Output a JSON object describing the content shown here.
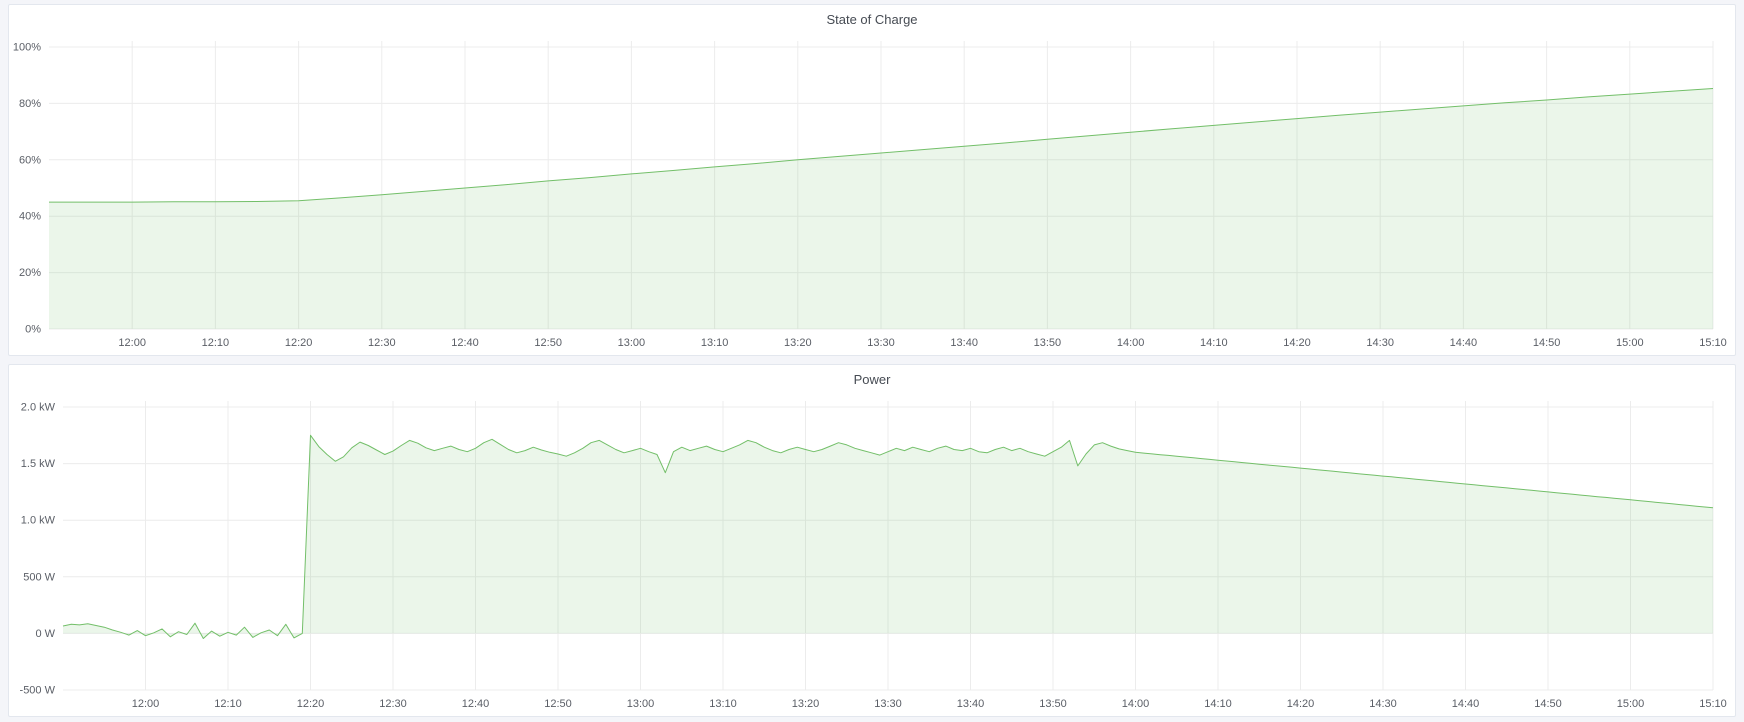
{
  "theme": {
    "page_bg": "#f4f5f9",
    "panel_bg": "#ffffff",
    "panel_border": "#e3e7ee",
    "title_text": "#464b53",
    "tick_text": "#5a5e66",
    "grid": "#ececec",
    "accent_green": "#73bf69"
  },
  "time_window": {
    "from": "11:50",
    "to": "15:10"
  },
  "chart_data": [
    {
      "type": "area",
      "title": "State of Charge",
      "ylabel": "",
      "xlabel": "",
      "x_min": 0,
      "x_max": 200,
      "x_start": 0,
      "x_step": 5,
      "x_ticks": [
        10,
        20,
        30,
        40,
        50,
        60,
        70,
        80,
        90,
        100,
        110,
        120,
        130,
        140,
        150,
        160,
        170,
        180,
        190,
        200
      ],
      "x_tick_labels": [
        "12:00",
        "12:10",
        "12:20",
        "12:30",
        "12:40",
        "12:50",
        "13:00",
        "13:10",
        "13:20",
        "13:30",
        "13:40",
        "13:50",
        "14:00",
        "14:10",
        "14:20",
        "14:30",
        "14:40",
        "14:50",
        "15:00",
        "15:10"
      ],
      "ylim": [
        0,
        100
      ],
      "y_ticks": [
        0,
        20,
        40,
        60,
        80,
        100
      ],
      "y_tick_labels": [
        "0%",
        "20%",
        "40%",
        "60%",
        "80%",
        "100%"
      ],
      "fill_baseline": 0,
      "line_color": "#73bf69",
      "fill_color": "rgba(115,191,105,0.14)",
      "grid_on": true,
      "legend": "none",
      "values": [
        45,
        45,
        45,
        45.1,
        45.1,
        45.2,
        45.5,
        46.5,
        47.6,
        48.8,
        50,
        51.2,
        52.5,
        53.7,
        55,
        56.2,
        57.5,
        58.7,
        60,
        61.2,
        62.4,
        63.6,
        64.8,
        66,
        67.3,
        68.5,
        69.8,
        71,
        72.2,
        73.4,
        74.6,
        75.8,
        76.9,
        78,
        79.1,
        80.2,
        81.2,
        82.3,
        83.3,
        84.3,
        85.3
      ]
    },
    {
      "type": "area",
      "title": "Power",
      "ylabel": "",
      "xlabel": "",
      "x_min": 0,
      "x_max": 200,
      "x_start": 0,
      "x_step": 1,
      "x_ticks": [
        10,
        20,
        30,
        40,
        50,
        60,
        70,
        80,
        90,
        100,
        110,
        120,
        130,
        140,
        150,
        160,
        170,
        180,
        190,
        200
      ],
      "x_tick_labels": [
        "12:00",
        "12:10",
        "12:20",
        "12:30",
        "12:40",
        "12:50",
        "13:00",
        "13:10",
        "13:20",
        "13:30",
        "13:40",
        "13:50",
        "14:00",
        "14:10",
        "14:20",
        "14:30",
        "14:40",
        "14:50",
        "15:00",
        "15:10"
      ],
      "ylim": [
        -500,
        2000
      ],
      "y_ticks": [
        -500,
        0,
        500,
        1000,
        1500,
        2000
      ],
      "y_tick_labels": [
        "-500 W",
        "0 W",
        "500 W",
        "1.0 kW",
        "1.5 kW",
        "2.0 kW"
      ],
      "fill_baseline": 0,
      "line_color": "#73bf69",
      "fill_color": "rgba(115,191,105,0.14)",
      "grid_on": true,
      "legend": "none",
      "values": [
        65,
        80,
        75,
        85,
        70,
        55,
        30,
        10,
        -15,
        25,
        -20,
        5,
        40,
        -30,
        15,
        -10,
        90,
        -45,
        20,
        -25,
        10,
        -15,
        55,
        -35,
        5,
        30,
        -20,
        80,
        -40,
        0,
        1750,
        1650,
        1580,
        1520,
        1560,
        1640,
        1690,
        1660,
        1620,
        1580,
        1610,
        1660,
        1705,
        1680,
        1640,
        1615,
        1635,
        1655,
        1625,
        1605,
        1635,
        1685,
        1715,
        1670,
        1625,
        1595,
        1615,
        1645,
        1620,
        1600,
        1585,
        1565,
        1595,
        1635,
        1685,
        1705,
        1665,
        1625,
        1595,
        1615,
        1635,
        1605,
        1580,
        1420,
        1605,
        1645,
        1615,
        1635,
        1655,
        1625,
        1605,
        1635,
        1665,
        1705,
        1685,
        1645,
        1615,
        1595,
        1625,
        1645,
        1625,
        1605,
        1625,
        1655,
        1685,
        1665,
        1635,
        1615,
        1595,
        1575,
        1605,
        1635,
        1615,
        1645,
        1625,
        1605,
        1635,
        1655,
        1625,
        1615,
        1635,
        1605,
        1595,
        1625,
        1645,
        1615,
        1635,
        1605,
        1585,
        1565,
        1605,
        1645,
        1705,
        1480,
        1585,
        1665,
        1685,
        1655,
        1630,
        1615,
        1600,
        1593,
        1586,
        1579,
        1572,
        1565,
        1558,
        1551,
        1544,
        1537,
        1530,
        1523,
        1516,
        1509,
        1502,
        1495,
        1488,
        1481,
        1474,
        1467,
        1460,
        1453,
        1446,
        1439,
        1432,
        1425,
        1418,
        1411,
        1404,
        1397,
        1390,
        1383,
        1376,
        1369,
        1362,
        1355,
        1348,
        1341,
        1334,
        1327,
        1320,
        1313,
        1306,
        1299,
        1292,
        1285,
        1278,
        1271,
        1264,
        1257,
        1250,
        1243,
        1236,
        1229,
        1222,
        1215,
        1208,
        1201,
        1194,
        1187,
        1180,
        1173,
        1166,
        1159,
        1152,
        1145,
        1138,
        1131,
        1124,
        1117,
        1110
      ]
    }
  ]
}
